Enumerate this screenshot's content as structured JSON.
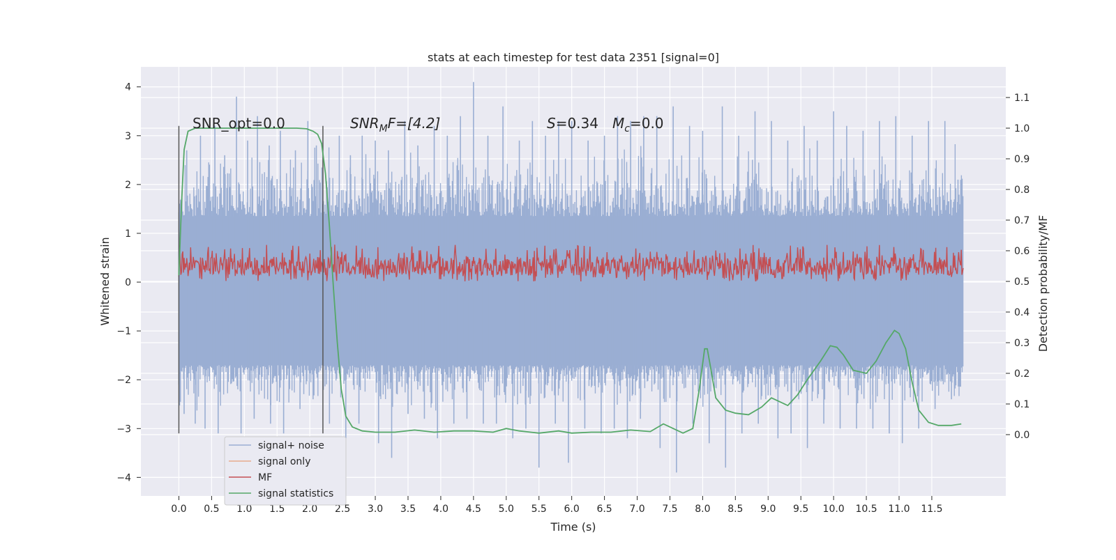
{
  "chart_data": {
    "type": "line",
    "title": "stats at each timestep for test data 2351 [signal=0]",
    "xlabel": "Time (s)",
    "ylabel": "Whitened strain",
    "y2label": "Detection probability/MF",
    "xlim": [
      -0.58,
      12.63
    ],
    "ylim": [
      -4.38,
      4.41
    ],
    "y2lim": [
      -0.2,
      1.2
    ],
    "x_ticks": [
      0.0,
      0.5,
      1.0,
      1.5,
      2.0,
      2.5,
      3.0,
      3.5,
      4.0,
      4.5,
      5.0,
      5.5,
      6.0,
      6.5,
      7.0,
      7.5,
      8.0,
      8.5,
      9.0,
      9.5,
      10.0,
      10.5,
      11.0,
      11.5
    ],
    "x_tick_labels": [
      "0.0",
      "0.5",
      "1.0",
      "1.5",
      "2.0",
      "2.5",
      "3.0",
      "3.5",
      "4.0",
      "4.5",
      "5.0",
      "5.5",
      "6.0",
      "6.5",
      "7.0",
      "7.5",
      "8.0",
      "8.5",
      "9.0",
      "9.5",
      "10.0",
      "10.5",
      "11.0",
      "11.5"
    ],
    "y_ticks": [
      -4,
      -3,
      -2,
      -1,
      0,
      1,
      2,
      3,
      4
    ],
    "y_tick_labels": [
      "−4",
      "−3",
      "−2",
      "−1",
      "0",
      "1",
      "2",
      "3",
      "4"
    ],
    "y2_ticks": [
      0.0,
      0.1,
      0.2,
      0.3,
      0.4,
      0.5,
      0.6,
      0.7,
      0.8,
      0.9,
      1.0,
      1.1
    ],
    "y2_tick_labels": [
      "0.0",
      "0.1",
      "0.2",
      "0.3",
      "0.4",
      "0.5",
      "0.6",
      "0.7",
      "0.8",
      "0.9",
      "1.0",
      "1.1"
    ],
    "grid": true,
    "legend_position": "lower-left",
    "background_color": "#eaeaf2",
    "noise_band": {
      "name": "signal+ noise",
      "color": "#9aaed3",
      "x_range": [
        0.0,
        11.98
      ],
      "typical_min": -1.7,
      "typical_max": 1.35,
      "spikes_up_t": [
        0.12,
        0.33,
        0.55,
        0.7,
        0.88,
        1.05,
        1.2,
        1.38,
        1.55,
        1.78,
        1.97,
        2.1,
        2.45,
        2.62,
        2.8,
        3.0,
        3.2,
        3.45,
        3.65,
        3.9,
        4.1,
        4.3,
        4.5,
        4.72,
        4.95,
        5.2,
        5.4,
        5.6,
        5.8,
        6.0,
        6.25,
        6.5,
        6.7,
        6.9,
        7.1,
        7.3,
        7.55,
        7.8,
        8.0,
        8.3,
        8.55,
        8.8,
        9.05,
        9.3,
        9.55,
        9.75,
        10.0,
        10.2,
        10.45,
        10.7,
        10.95,
        11.2,
        11.45,
        11.7,
        11.9
      ],
      "spikes_up_v": [
        2.7,
        3.0,
        3.2,
        2.6,
        3.8,
        2.9,
        3.4,
        2.8,
        3.1,
        2.7,
        3.3,
        2.8,
        3.0,
        2.6,
        3.0,
        2.9,
        2.7,
        3.3,
        2.8,
        3.2,
        3.0,
        3.4,
        4.1,
        3.0,
        3.6,
        2.9,
        3.3,
        3.0,
        3.3,
        3.3,
        2.9,
        3.0,
        3.4,
        3.3,
        3.4,
        3.4,
        3.6,
        3.2,
        3.1,
        3.6,
        3.0,
        3.5,
        3.3,
        2.9,
        3.2,
        2.9,
        3.5,
        3.2,
        3.1,
        3.3,
        3.4,
        3.0,
        3.3,
        3.3,
        2.1
      ],
      "spikes_down_t": [
        0.08,
        0.25,
        0.4,
        0.6,
        0.95,
        1.15,
        1.4,
        1.6,
        1.85,
        2.05,
        2.3,
        2.55,
        2.75,
        3.05,
        3.25,
        3.5,
        3.75,
        3.95,
        4.2,
        4.4,
        4.65,
        4.85,
        5.1,
        5.3,
        5.5,
        5.75,
        5.95,
        6.2,
        6.45,
        6.65,
        6.85,
        7.05,
        7.35,
        7.6,
        7.85,
        8.1,
        8.35,
        8.6,
        8.85,
        9.15,
        9.35,
        9.6,
        9.85,
        10.1,
        10.35,
        10.6,
        10.85,
        11.05,
        11.3,
        11.55,
        11.8
      ],
      "spikes_down_v": [
        -2.7,
        -2.9,
        -3.0,
        -3.1,
        -3.1,
        -2.8,
        -2.9,
        -3.1,
        -2.6,
        -2.4,
        -2.9,
        -3.2,
        -2.9,
        -3.3,
        -3.6,
        -2.7,
        -2.8,
        -3.2,
        -2.9,
        -2.8,
        -2.9,
        -2.9,
        -3.2,
        -3.0,
        -3.8,
        -2.9,
        -3.7,
        -3.0,
        -3.1,
        -3.0,
        -3.2,
        -2.8,
        -3.4,
        -3.9,
        -2.9,
        -3.3,
        -3.8,
        -3.1,
        -2.9,
        -3.2,
        -3.1,
        -3.4,
        -2.9,
        -3.0,
        -3.0,
        -3.0,
        -3.1,
        -3.3,
        -3.0,
        -2.6,
        -2.4
      ]
    },
    "signal_only": {
      "name": "signal only",
      "color": "#e7aa8d"
    },
    "mf": {
      "name": "MF",
      "color": "#c44e52",
      "axis": "secondary",
      "x_range": [
        0.0,
        11.98
      ],
      "typical_min": 0.52,
      "typical_max": 0.58,
      "peak_max": 0.62
    },
    "signal_statistics": {
      "name": "signal statistics",
      "color": "#55a868",
      "axis": "secondary",
      "x": [
        0.0,
        0.04,
        0.08,
        0.14,
        0.25,
        0.5,
        1.0,
        1.5,
        1.8,
        1.95,
        2.05,
        2.12,
        2.18,
        2.24,
        2.3,
        2.36,
        2.42,
        2.48,
        2.55,
        2.65,
        2.8,
        3.0,
        3.3,
        3.6,
        3.9,
        4.2,
        4.5,
        4.8,
        5.0,
        5.2,
        5.5,
        5.8,
        6.0,
        6.3,
        6.6,
        6.9,
        7.2,
        7.4,
        7.55,
        7.7,
        7.85,
        7.95,
        8.03,
        8.07,
        8.12,
        8.2,
        8.35,
        8.5,
        8.7,
        8.9,
        9.05,
        9.15,
        9.3,
        9.45,
        9.6,
        9.8,
        9.95,
        10.05,
        10.15,
        10.3,
        10.5,
        10.65,
        10.8,
        10.93,
        11.0,
        11.1,
        11.2,
        11.3,
        11.45,
        11.6,
        11.8,
        11.95
      ],
      "y": [
        0.52,
        0.75,
        0.93,
        0.99,
        1.0,
        1.0,
        1.0,
        1.0,
        1.0,
        0.998,
        0.99,
        0.98,
        0.95,
        0.85,
        0.68,
        0.48,
        0.3,
        0.15,
        0.06,
        0.025,
        0.012,
        0.008,
        0.008,
        0.015,
        0.008,
        0.012,
        0.012,
        0.008,
        0.02,
        0.012,
        0.005,
        0.012,
        0.005,
        0.008,
        0.008,
        0.015,
        0.01,
        0.035,
        0.02,
        0.005,
        0.02,
        0.15,
        0.28,
        0.28,
        0.22,
        0.12,
        0.08,
        0.07,
        0.065,
        0.09,
        0.12,
        0.11,
        0.095,
        0.13,
        0.18,
        0.24,
        0.29,
        0.285,
        0.26,
        0.21,
        0.2,
        0.24,
        0.3,
        0.34,
        0.33,
        0.28,
        0.17,
        0.08,
        0.04,
        0.03,
        0.03,
        0.035
      ]
    },
    "vertical_lines_x": [
      0.0,
      2.2
    ],
    "vertical_lines_range": [
      -3.1,
      3.2
    ],
    "annotations": {
      "snr_opt": "SNR_opt=0.0",
      "snr_mf_pre": "SNR",
      "snr_mf_sub": "M",
      "snr_mf_post": "F=[4.2]",
      "s_symbol": "S",
      "s_value": "=0.34",
      "mc_symbol": "M",
      "mc_sub": "c",
      "mc_value": "=0.0"
    }
  }
}
